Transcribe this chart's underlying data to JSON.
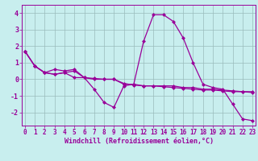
{
  "xlabel": "Windchill (Refroidissement éolien,°C)",
  "x": [
    0,
    1,
    2,
    3,
    4,
    5,
    6,
    7,
    8,
    9,
    10,
    11,
    12,
    13,
    14,
    15,
    16,
    17,
    18,
    19,
    20,
    21,
    22,
    23
  ],
  "line1": [
    1.7,
    0.8,
    0.4,
    0.6,
    0.5,
    0.6,
    0.1,
    -0.6,
    -1.4,
    -1.7,
    -0.4,
    -0.3,
    2.3,
    3.9,
    3.9,
    3.5,
    2.5,
    1.0,
    -0.3,
    -0.5,
    -0.6,
    -1.5,
    -2.4,
    -2.5
  ],
  "line2": [
    1.7,
    0.8,
    0.4,
    0.3,
    0.4,
    0.1,
    0.1,
    0.05,
    0.0,
    0.0,
    -0.25,
    -0.35,
    -0.4,
    -0.4,
    -0.45,
    -0.5,
    -0.55,
    -0.6,
    -0.65,
    -0.65,
    -0.7,
    -0.75,
    -0.75,
    -0.8
  ],
  "line3": [
    1.7,
    0.8,
    0.4,
    0.3,
    0.4,
    0.5,
    0.1,
    0.0,
    0.0,
    0.0,
    -0.3,
    -0.3,
    -0.4,
    -0.4,
    -0.4,
    -0.4,
    -0.5,
    -0.5,
    -0.6,
    -0.6,
    -0.65,
    -0.7,
    -0.75,
    -0.75
  ],
  "line_color": "#990099",
  "bg_color": "#c8eeee",
  "grid_color": "#99bbbb",
  "ylim": [
    -2.8,
    4.5
  ],
  "yticks": [
    -2,
    -1,
    0,
    1,
    2,
    3,
    4
  ],
  "xlim": [
    -0.3,
    23.3
  ],
  "marker": "D",
  "markersize": 2.5,
  "xlabel_fontsize": 6,
  "tick_fontsize": 5.5
}
